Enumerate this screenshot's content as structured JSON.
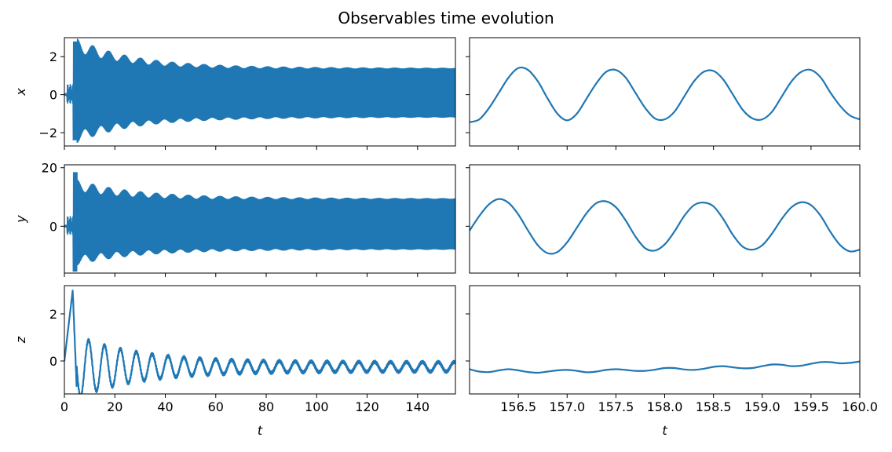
{
  "chart_data": {
    "type": "line",
    "title": "Observables time evolution",
    "color": "#1f77b4",
    "rows": [
      {
        "ylabel": "x",
        "full": {
          "xlim": [
            0,
            155
          ],
          "ylim": [
            -2.7,
            3.0
          ],
          "yticks": [
            -2,
            0,
            2
          ],
          "envelope": {
            "peak": [
              0,
              2.8,
              4.0,
              2.6,
              1.6,
              1.4
            ],
            "trough": [
              0,
              -2.4,
              -4.0,
              -2.4,
              -1.6,
              -1.4
            ]
          }
        },
        "zoom": {
          "xlim": [
            156.0,
            160.0
          ],
          "x": [
            156.0,
            156.1,
            156.2,
            156.3,
            156.4,
            156.5,
            156.6,
            156.7,
            156.8,
            156.9,
            157.0,
            157.1,
            157.2,
            157.3,
            157.4,
            157.5,
            157.6,
            157.7,
            157.8,
            157.9,
            158.0,
            158.1,
            158.2,
            158.3,
            158.4,
            158.5,
            158.6,
            158.7,
            158.8,
            158.9,
            159.0,
            159.1,
            159.2,
            159.3,
            159.4,
            159.5,
            159.6,
            159.7,
            159.8,
            159.9,
            160.0
          ],
          "y": [
            -1.45,
            -1.3,
            -0.7,
            0.1,
            0.9,
            1.4,
            1.3,
            0.7,
            -0.2,
            -1.0,
            -1.35,
            -1.0,
            -0.2,
            0.6,
            1.2,
            1.3,
            0.9,
            0.1,
            -0.7,
            -1.25,
            -1.3,
            -0.9,
            -0.1,
            0.7,
            1.2,
            1.25,
            0.8,
            0.0,
            -0.8,
            -1.25,
            -1.3,
            -0.9,
            -0.1,
            0.7,
            1.2,
            1.3,
            0.9,
            0.1,
            -0.6,
            -1.1,
            -1.3
          ]
        }
      },
      {
        "ylabel": "y",
        "full": {
          "xlim": [
            0,
            155
          ],
          "ylim": [
            -16,
            21
          ],
          "yticks": [
            0,
            20
          ],
          "envelope": {
            "peak": [
              0,
              18.5,
              4.0,
              14.0,
              10.0,
              9.5
            ],
            "trough": [
              0,
              -15.5,
              -4.0,
              -13.0,
              -9.5,
              -9.0
            ]
          }
        },
        "zoom": {
          "xlim": [
            156.0,
            160.0
          ],
          "x": [
            156.0,
            156.1,
            156.2,
            156.3,
            156.4,
            156.5,
            156.6,
            156.7,
            156.8,
            156.9,
            157.0,
            157.1,
            157.2,
            157.3,
            157.4,
            157.5,
            157.6,
            157.7,
            157.8,
            157.9,
            158.0,
            158.1,
            158.2,
            158.3,
            158.4,
            158.5,
            158.6,
            158.7,
            158.8,
            158.9,
            159.0,
            159.1,
            159.2,
            159.3,
            159.4,
            159.5,
            159.6,
            159.7,
            159.8,
            159.9,
            160.0
          ],
          "y": [
            -1.5,
            3.5,
            7.5,
            9.3,
            8.0,
            4.0,
            -1.5,
            -6.5,
            -9.2,
            -8.8,
            -5.5,
            -0.5,
            4.5,
            7.9,
            8.5,
            6.5,
            2.0,
            -3.5,
            -7.5,
            -8.3,
            -6.2,
            -1.8,
            3.5,
            7.2,
            8.1,
            6.8,
            2.5,
            -3.0,
            -7.0,
            -8.0,
            -6.5,
            -2.5,
            2.5,
            6.5,
            8.2,
            7.2,
            3.5,
            -2.0,
            -6.5,
            -8.6,
            -8.0
          ]
        }
      },
      {
        "ylabel": "z",
        "full": {
          "xlim": [
            0,
            155
          ],
          "ylim": [
            -1.4,
            3.2
          ],
          "yticks": [
            0,
            2
          ],
          "xticks": [
            0,
            20,
            40,
            60,
            80,
            100,
            120,
            140
          ],
          "xlabel": "t",
          "signal": {
            "peak_t": 3.3,
            "peak_z": 3.0,
            "period": 6.3,
            "amp": [
              1.2,
              0.85,
              0.5,
              0.38,
              0.3,
              0.25
            ],
            "decay": 25,
            "offset": -0.25
          }
        },
        "zoom": {
          "xlim": [
            156.0,
            160.0
          ],
          "xticks": [
            156.5,
            157.0,
            157.5,
            158.0,
            158.5,
            159.0,
            159.5,
            160.0
          ],
          "xlabel": "t",
          "x": [
            156.0,
            156.1,
            156.2,
            156.3,
            156.4,
            156.5,
            156.6,
            156.7,
            156.8,
            156.9,
            157.0,
            157.1,
            157.2,
            157.3,
            157.4,
            157.5,
            157.6,
            157.7,
            157.8,
            157.9,
            158.0,
            158.1,
            158.2,
            158.3,
            158.4,
            158.5,
            158.6,
            158.7,
            158.8,
            158.9,
            159.0,
            159.1,
            159.2,
            159.3,
            159.4,
            159.5,
            159.6,
            159.7,
            159.8,
            159.9,
            160.0
          ],
          "y": [
            -0.35,
            -0.45,
            -0.47,
            -0.4,
            -0.35,
            -0.4,
            -0.47,
            -0.5,
            -0.45,
            -0.4,
            -0.38,
            -0.42,
            -0.48,
            -0.45,
            -0.38,
            -0.35,
            -0.38,
            -0.42,
            -0.42,
            -0.37,
            -0.3,
            -0.3,
            -0.36,
            -0.38,
            -0.33,
            -0.25,
            -0.22,
            -0.27,
            -0.31,
            -0.3,
            -0.22,
            -0.15,
            -0.16,
            -0.22,
            -0.2,
            -0.12,
            -0.05,
            -0.05,
            -0.1,
            -0.08,
            -0.02
          ]
        }
      }
    ]
  }
}
